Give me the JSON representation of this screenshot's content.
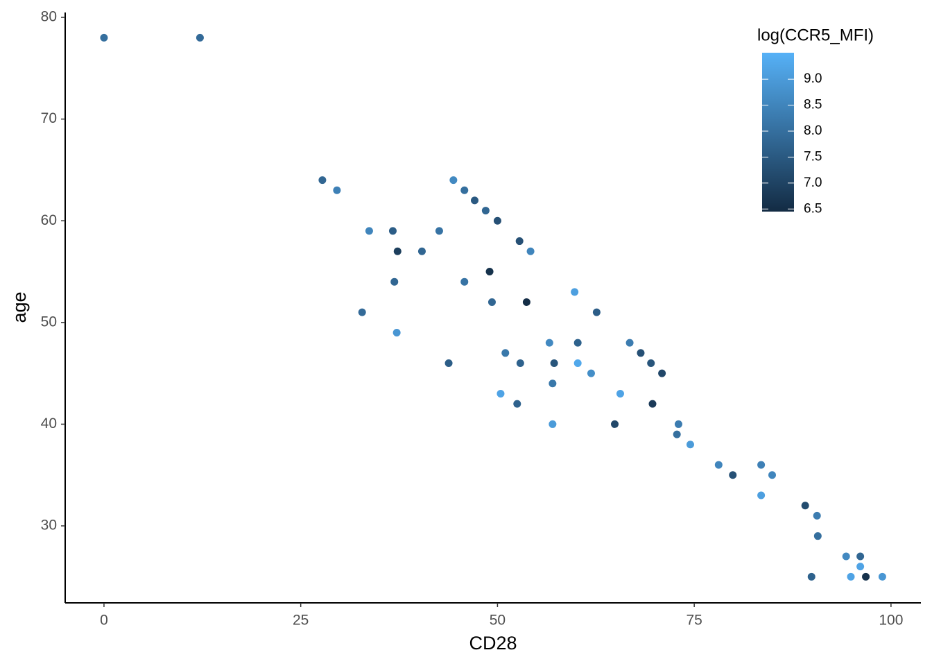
{
  "chart_data": {
    "type": "scatter",
    "x_label": "CD28",
    "y_label": "age",
    "legend_title": "log(CCR5_MFI)",
    "xlim": [
      -4.93,
      103.8
    ],
    "ylim": [
      22.43,
      80.48
    ],
    "xticks": [
      0,
      25,
      50,
      75,
      100
    ],
    "yticks": [
      30,
      40,
      50,
      60,
      70,
      80
    ],
    "color_low": "#132B43",
    "color_high": "#56B1F7",
    "zlim": [
      6.45,
      9.51
    ],
    "zticks": [
      {
        "value": 6.5,
        "label": "6.5"
      },
      {
        "value": 7.0,
        "label": "7.0"
      },
      {
        "value": 7.5,
        "label": "7.5"
      },
      {
        "value": 8.0,
        "label": "8.0"
      },
      {
        "value": 8.5,
        "label": "8.5"
      },
      {
        "value": 9.0,
        "label": "9.0"
      }
    ],
    "legend_position": "top-right",
    "x": [
      0,
      12.2,
      27.75,
      29.6,
      33.7,
      36.7,
      37.3,
      40.4,
      42.6,
      36.9,
      32.8,
      37.2,
      43.8,
      44.4,
      45.8,
      47.1,
      48.5,
      50,
      49,
      45.8,
      49.3,
      52.8,
      54.2,
      53.7,
      51,
      52.9,
      50.4,
      52.5,
      56.6,
      57,
      57.2,
      57,
      59.8,
      60.2,
      60.2,
      61.9,
      62.6,
      65.6,
      64.9,
      66.8,
      68.2,
      69.5,
      70.9,
      69.7,
      73,
      72.8,
      74.5,
      78.1,
      79.9,
      83.5,
      84.9,
      83.5,
      89.1,
      90.6,
      90.7,
      89.9,
      94.3,
      96.1,
      96.1,
      94.9,
      96.8,
      98.9
    ],
    "y": [
      78,
      78,
      64,
      63,
      59,
      59,
      57,
      57,
      59,
      54,
      51,
      49,
      46,
      64,
      63,
      62,
      61,
      60,
      55,
      54,
      52,
      58,
      57,
      52,
      47,
      46,
      43,
      42,
      48,
      44,
      46,
      40,
      53,
      48,
      46,
      45,
      51,
      43,
      40,
      48,
      47,
      46,
      45,
      42,
      40,
      39,
      38,
      36,
      35,
      36,
      35,
      33,
      32,
      31,
      29,
      25,
      27,
      27,
      26,
      25,
      25,
      25
    ],
    "z": [
      8.0,
      7.9,
      7.8,
      8.4,
      8.5,
      7.6,
      6.9,
      7.8,
      8.1,
      7.8,
      7.9,
      8.9,
      7.6,
      8.6,
      8.0,
      7.5,
      7.8,
      7.3,
      6.6,
      8.1,
      7.8,
      7.3,
      8.5,
      6.5,
      8.2,
      7.7,
      9.2,
      7.7,
      8.6,
      8.2,
      7.4,
      9.0,
      9.1,
      7.7,
      9.3,
      8.7,
      7.6,
      9.2,
      7.1,
      8.3,
      7.3,
      7.4,
      7.1,
      6.8,
      8.3,
      8.0,
      9.0,
      8.5,
      7.3,
      8.4,
      8.5,
      9.1,
      7.2,
      8.3,
      8.0,
      7.7,
      8.6,
      7.8,
      9.2,
      9.2,
      6.6,
      8.9
    ]
  }
}
